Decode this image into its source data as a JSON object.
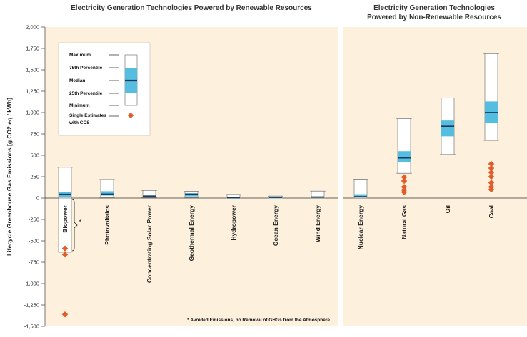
{
  "chart_data": [
    {
      "type": "box",
      "title": "Electricity Generation Technologies Powered by Renewable Resources",
      "ylabel": "Lifecycle Greenhouse Gas Emissions [g CO2 eq / kWh]",
      "ylim": [
        -1500,
        2000
      ],
      "yticks": [
        2000,
        1750,
        1500,
        1250,
        1000,
        750,
        500,
        250,
        0,
        -250,
        -500,
        -750,
        -1000,
        -1250,
        -1500
      ],
      "ytick_labels": [
        "2,000",
        "1,750",
        "1,500",
        "1,250",
        "1,000",
        "750",
        "500",
        "250",
        "0",
        "-250",
        "-500",
        "-750",
        "-1,000",
        "-1,250",
        "-1,500"
      ],
      "categories": [
        "Biopower",
        "Photovoltaics",
        "Concentrating Solar Power",
        "Geothermal Energy",
        "Hydropower",
        "Ocean Energy",
        "Wind Energy"
      ],
      "series": [
        {
          "category": "Biopower",
          "min": -633,
          "q1": 15,
          "median": 44,
          "q3": 75,
          "max": 360
        },
        {
          "category": "Photovoltaics",
          "min": 5,
          "q1": 29,
          "median": 46,
          "q3": 80,
          "max": 217
        },
        {
          "category": "Concentrating Solar Power",
          "min": 7,
          "q1": 14,
          "median": 22,
          "q3": 32,
          "max": 89
        },
        {
          "category": "Geothermal Energy",
          "min": 6,
          "q1": 20,
          "median": 45,
          "q3": 57,
          "max": 79
        },
        {
          "category": "Hydropower",
          "min": 0,
          "q1": 3,
          "median": 4,
          "q3": 7,
          "max": 43
        },
        {
          "category": "Ocean Energy",
          "min": 2,
          "q1": 6,
          "median": 8,
          "q3": 9,
          "max": 23
        },
        {
          "category": "Wind Energy",
          "min": 2,
          "q1": 8,
          "median": 12,
          "q3": 20,
          "max": 81
        }
      ],
      "single_estimates_ccs": [
        {
          "category": "Biopower",
          "values": [
            -590,
            -660,
            -1360
          ]
        }
      ],
      "bracket_label": "*",
      "footnote": "* Avoided Emissions, no Removal of GHGs from the Atmosphere",
      "legend": {
        "placement": "top-left",
        "labels": {
          "maximum": "Maximum",
          "p75": "75th Percentile",
          "median": "Median",
          "p25": "25th Percentile",
          "minimum": "Minimum",
          "ccs_line1": "Single Estimates",
          "ccs_line2": "with CCS"
        }
      }
    },
    {
      "type": "box",
      "title_line1": "Electricity Generation Technologies",
      "title_line2": "Powered by Non-Renewable Resources",
      "ylim": [
        -1500,
        2000
      ],
      "categories": [
        "Nuclear Energy",
        "Natural Gas",
        "Oil",
        "Coal"
      ],
      "series": [
        {
          "category": "Nuclear Energy",
          "min": 1,
          "q1": 8,
          "median": 16,
          "q3": 45,
          "max": 220
        },
        {
          "category": "Natural Gas",
          "min": 290,
          "q1": 422,
          "median": 469,
          "q3": 548,
          "max": 930
        },
        {
          "category": "Oil",
          "min": 510,
          "q1": 722,
          "median": 840,
          "q3": 907,
          "max": 1170
        },
        {
          "category": "Coal",
          "min": 675,
          "q1": 877,
          "median": 1001,
          "q3": 1130,
          "max": 1689
        }
      ],
      "single_estimates_ccs": [
        {
          "category": "Natural Gas",
          "values": [
            245,
            200,
            130,
            95,
            70
          ]
        },
        {
          "category": "Coal",
          "values": [
            400,
            350,
            300,
            250,
            180,
            130,
            100
          ]
        }
      ]
    }
  ],
  "colors": {
    "panel_bg": "#fdf0dc",
    "box_fill": "#ffffff",
    "iqr_fill": "#55bde0",
    "median_line": "#1c3a5c",
    "marker": "#e25b2a",
    "separator": "#ffffff",
    "grid": "#cfc8bc"
  }
}
